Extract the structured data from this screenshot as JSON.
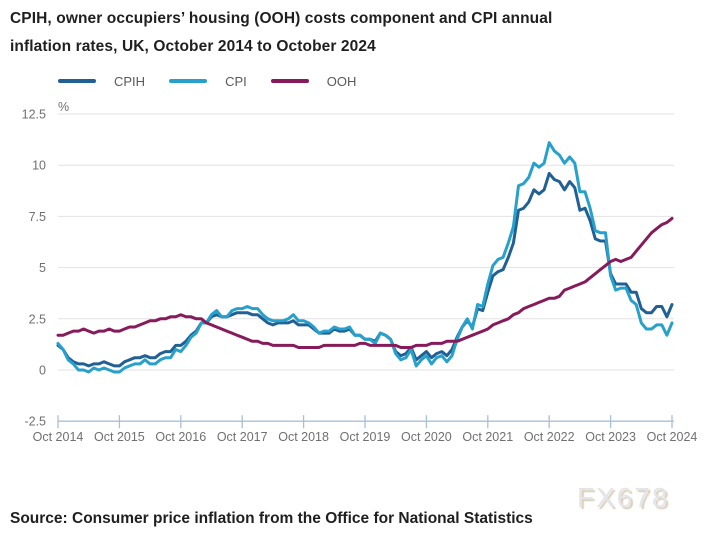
{
  "title": {
    "line1": "CPIH, owner occupiers’ housing (OOH) costs component and CPI annual",
    "line2": "inflation rates, UK, October 2014 to October 2024"
  },
  "legend": {
    "items": [
      {
        "label": "CPIH",
        "color": "#206095"
      },
      {
        "label": "CPI",
        "color": "#27a0cc"
      },
      {
        "label": "OOH",
        "color": "#871a5b"
      }
    ]
  },
  "chart_data": {
    "type": "line",
    "title": "CPIH, owner occupiers’ housing (OOH) costs component and CPI annual inflation rates, UK, October 2014 to October 2024",
    "unit_label": "%",
    "ylabel": "%",
    "xlabel": "",
    "ylim": [
      -2.5,
      12.5
    ],
    "y_ticks": [
      -2.5,
      0,
      2.5,
      5,
      7.5,
      10,
      12.5
    ],
    "grid": "horizontal",
    "legend_position": "top-left",
    "x_frequency": "monthly",
    "x_start": "Oct 2014",
    "x_end": "Oct 2024",
    "x_tick_labels": [
      "Oct 2014",
      "Oct 2015",
      "Oct 2016",
      "Oct 2017",
      "Oct 2018",
      "Oct 2019",
      "Oct 2020",
      "Oct 2021",
      "Oct 2022",
      "Oct 2023",
      "Oct 2024"
    ],
    "x_tick_month_index": [
      0,
      12,
      24,
      36,
      48,
      60,
      72,
      84,
      96,
      108,
      120
    ],
    "series": [
      {
        "name": "CPIH",
        "color": "#206095",
        "values": [
          1.2,
          1.0,
          0.6,
          0.4,
          0.3,
          0.3,
          0.2,
          0.3,
          0.3,
          0.4,
          0.3,
          0.2,
          0.2,
          0.4,
          0.5,
          0.6,
          0.6,
          0.7,
          0.6,
          0.6,
          0.8,
          0.9,
          0.9,
          1.2,
          1.2,
          1.4,
          1.7,
          1.9,
          2.3,
          2.3,
          2.6,
          2.7,
          2.6,
          2.6,
          2.7,
          2.8,
          2.8,
          2.8,
          2.7,
          2.7,
          2.5,
          2.3,
          2.2,
          2.3,
          2.3,
          2.3,
          2.4,
          2.2,
          2.2,
          2.2,
          2.0,
          1.8,
          1.8,
          1.8,
          2.0,
          1.9,
          1.9,
          2.0,
          1.7,
          1.7,
          1.5,
          1.5,
          1.4,
          1.8,
          1.7,
          1.5,
          0.9,
          0.7,
          0.8,
          1.1,
          0.5,
          0.7,
          0.9,
          0.6,
          0.8,
          0.9,
          0.7,
          1.0,
          1.6,
          2.1,
          2.4,
          2.1,
          3.0,
          2.9,
          3.8,
          4.6,
          4.8,
          4.9,
          5.5,
          6.2,
          7.8,
          7.9,
          8.2,
          8.8,
          8.6,
          8.8,
          9.6,
          9.3,
          9.2,
          8.8,
          9.2,
          8.9,
          7.8,
          7.9,
          7.3,
          6.4,
          6.3,
          6.3,
          4.7,
          4.2,
          4.2,
          4.2,
          3.8,
          3.8,
          3.0,
          2.8,
          2.8,
          3.1,
          3.1,
          2.6,
          3.2
        ]
      },
      {
        "name": "CPI",
        "color": "#27a0cc",
        "values": [
          1.3,
          1.0,
          0.5,
          0.3,
          0.0,
          0.0,
          -0.1,
          0.1,
          0.0,
          0.1,
          0.0,
          -0.1,
          -0.1,
          0.1,
          0.2,
          0.3,
          0.3,
          0.5,
          0.3,
          0.3,
          0.5,
          0.6,
          0.6,
          1.0,
          0.9,
          1.2,
          1.6,
          1.8,
          2.3,
          2.3,
          2.7,
          2.9,
          2.6,
          2.6,
          2.9,
          3.0,
          3.0,
          3.1,
          3.0,
          3.0,
          2.7,
          2.5,
          2.4,
          2.4,
          2.4,
          2.5,
          2.7,
          2.4,
          2.4,
          2.3,
          2.1,
          1.8,
          1.9,
          1.9,
          2.1,
          2.0,
          2.0,
          2.1,
          1.7,
          1.7,
          1.5,
          1.5,
          1.3,
          1.8,
          1.7,
          1.5,
          0.8,
          0.5,
          0.6,
          1.0,
          0.2,
          0.5,
          0.7,
          0.3,
          0.6,
          0.7,
          0.4,
          0.7,
          1.5,
          2.1,
          2.5,
          2.0,
          3.2,
          3.1,
          4.2,
          5.1,
          5.4,
          5.5,
          6.2,
          7.0,
          9.0,
          9.1,
          9.4,
          10.1,
          9.9,
          10.1,
          11.1,
          10.7,
          10.5,
          10.1,
          10.4,
          10.1,
          8.7,
          8.7,
          7.9,
          6.8,
          6.7,
          6.7,
          4.6,
          3.9,
          4.0,
          4.0,
          3.4,
          3.2,
          2.3,
          2.0,
          2.0,
          2.2,
          2.2,
          1.7,
          2.3
        ]
      },
      {
        "name": "OOH",
        "color": "#871a5b",
        "values": [
          1.7,
          1.7,
          1.8,
          1.9,
          1.9,
          2.0,
          1.9,
          1.8,
          1.9,
          1.9,
          2.0,
          1.9,
          1.9,
          2.0,
          2.1,
          2.1,
          2.2,
          2.3,
          2.4,
          2.4,
          2.5,
          2.5,
          2.6,
          2.6,
          2.7,
          2.6,
          2.6,
          2.5,
          2.5,
          2.3,
          2.2,
          2.1,
          2.0,
          1.9,
          1.8,
          1.7,
          1.6,
          1.5,
          1.4,
          1.4,
          1.3,
          1.3,
          1.2,
          1.2,
          1.2,
          1.2,
          1.2,
          1.1,
          1.1,
          1.1,
          1.1,
          1.1,
          1.2,
          1.2,
          1.2,
          1.2,
          1.2,
          1.2,
          1.2,
          1.3,
          1.3,
          1.2,
          1.2,
          1.2,
          1.2,
          1.2,
          1.2,
          1.1,
          1.1,
          1.1,
          1.2,
          1.2,
          1.2,
          1.3,
          1.3,
          1.3,
          1.4,
          1.4,
          1.4,
          1.5,
          1.6,
          1.7,
          1.8,
          1.9,
          2.0,
          2.2,
          2.3,
          2.4,
          2.5,
          2.7,
          2.8,
          3.0,
          3.1,
          3.2,
          3.3,
          3.4,
          3.5,
          3.5,
          3.6,
          3.9,
          4.0,
          4.1,
          4.2,
          4.3,
          4.5,
          4.7,
          4.9,
          5.1,
          5.3,
          5.4,
          5.3,
          5.4,
          5.5,
          5.8,
          6.1,
          6.4,
          6.7,
          6.9,
          7.1,
          7.2,
          7.4
        ]
      }
    ]
  },
  "source": "Source: Consumer price inflation from the Office for National Statistics",
  "watermark": "FX678",
  "colors": {
    "background": "#ffffff",
    "gridline": "#e2e2e2",
    "axis_line": "#a8c0d6",
    "tick_label": "#707071",
    "title_text": "#1f1f1f",
    "watermark": "#e2e6e9"
  }
}
